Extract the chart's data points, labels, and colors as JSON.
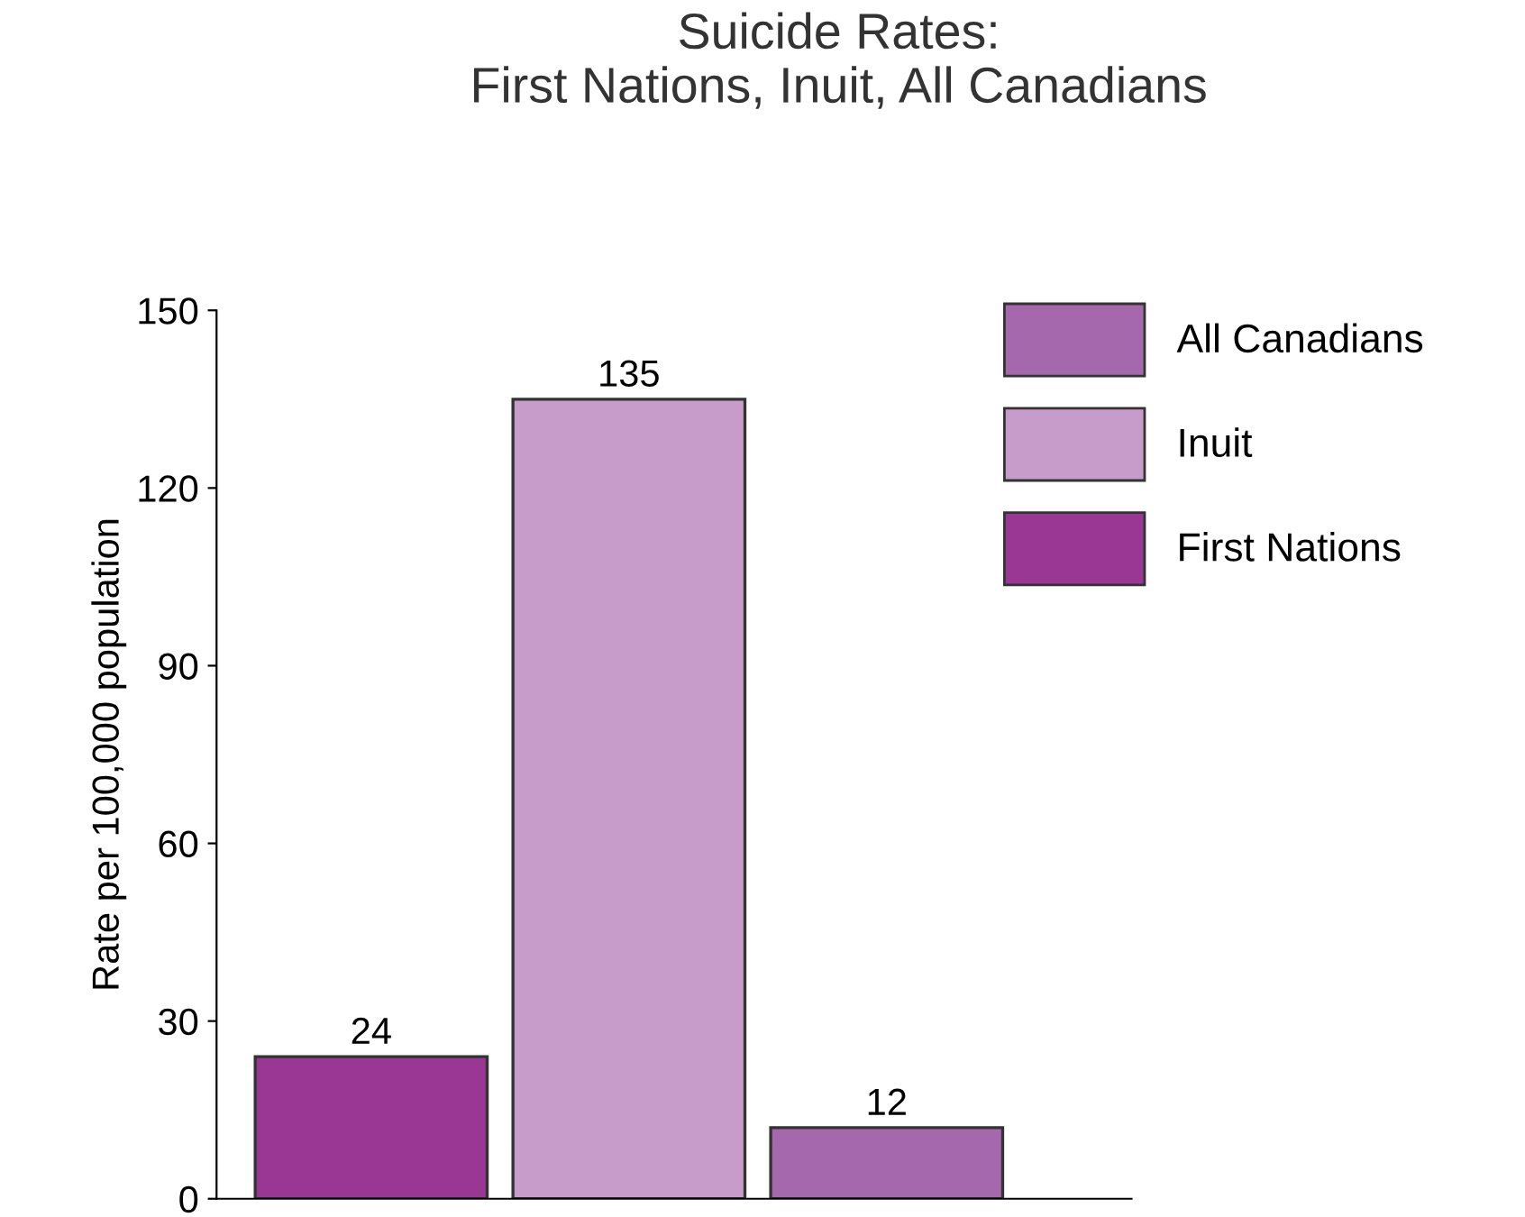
{
  "chart_data": {
    "type": "bar",
    "title": "Suicide Rates:\nFirst Nations, Inuit, All Canadians",
    "ylabel": "Rate per 100,000 population",
    "categories": [
      null,
      null,
      null
    ],
    "series": [
      {
        "name": "All Canadians",
        "color": "#a668ad",
        "values": [
          null,
          null,
          12
        ]
      },
      {
        "name": "Inuit",
        "color": "#c89cca",
        "values": [
          null,
          135,
          null
        ]
      },
      {
        "name": "First Nations",
        "color": "#9a3795",
        "values": [
          24,
          null,
          null
        ]
      }
    ],
    "ylim": [
      0,
      150
    ],
    "yticks": [
      0,
      30,
      60,
      90,
      120,
      150
    ],
    "data_labels": true,
    "legend": "right",
    "grid": false
  }
}
